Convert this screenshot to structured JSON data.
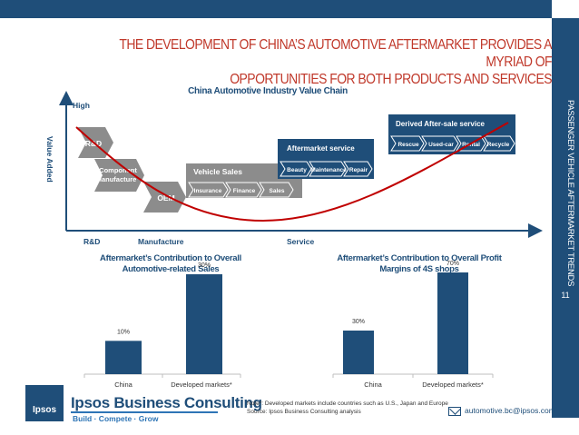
{
  "header": {
    "title_line1": "THE DEVELOPMENT OF CHINA’S AUTOMOTIVE AFTERMARKET PROVIDES A MYRIAD OF",
    "title_line2": "OPPORTUNITIES FOR BOTH PRODUCTS AND SERVICES"
  },
  "sidebar": {
    "label": "PASSENGER VEHICLE AFTERMARKET TRENDS",
    "page_number": "11"
  },
  "value_chain": {
    "title": "China Automotive Industry Value Chain",
    "y_axis_label": "Value Added",
    "y_axis_high": "High",
    "x_labels": [
      "R&D",
      "Manufacture",
      "Service"
    ],
    "rd_label": "R&D",
    "component_label_1": "Component",
    "component_label_2": "Manufacture",
    "oem_label": "OEM",
    "vehicle_sales": {
      "title": "Vehicle Sales",
      "items": [
        "Insurance",
        "Finance",
        "Sales"
      ]
    },
    "aftermarket_service": {
      "title": "Aftermarket service",
      "items": [
        "Beauty",
        "Maintenance",
        "Repair"
      ]
    },
    "derived_service": {
      "title": "Derived After-sale service",
      "items": [
        "Rescue",
        "Used-car",
        "Rental",
        "Recycle"
      ]
    },
    "colors": {
      "grey": "#8c8c8c",
      "dark_blue": "#1f4e79",
      "curve": "#c00000"
    }
  },
  "chart_data": [
    {
      "type": "bar",
      "title_line1": "Aftermarket’s Contribution to Overall",
      "title_line2": "Automotive-related Sales",
      "categories": [
        "China",
        "Developed markets*"
      ],
      "values": [
        10,
        30
      ],
      "labels": [
        "10%",
        "30%"
      ],
      "ylim": [
        0,
        30
      ],
      "color": "#1f4e79"
    },
    {
      "type": "bar",
      "title_line1": "Aftermarket’s Contribution to Overall Profit",
      "title_line2": "Margins of 4S shops",
      "categories": [
        "China",
        "Developed markets*"
      ],
      "values": [
        30,
        70
      ],
      "labels": [
        "30%",
        "70%"
      ],
      "ylim": [
        0,
        70
      ],
      "color": "#1f4e79"
    }
  ],
  "footer": {
    "logo_text": "Ipsos",
    "brand": "Ipsos Business Consulting",
    "tagline": "Build · Compete · Grow",
    "note_line1": "Note*: Developed markets include countries such as U.S., Japan and Europe",
    "note_line2": "Source: Ipsos Business Consulting analysis",
    "email": "automotive.bc@ipsos.com"
  }
}
